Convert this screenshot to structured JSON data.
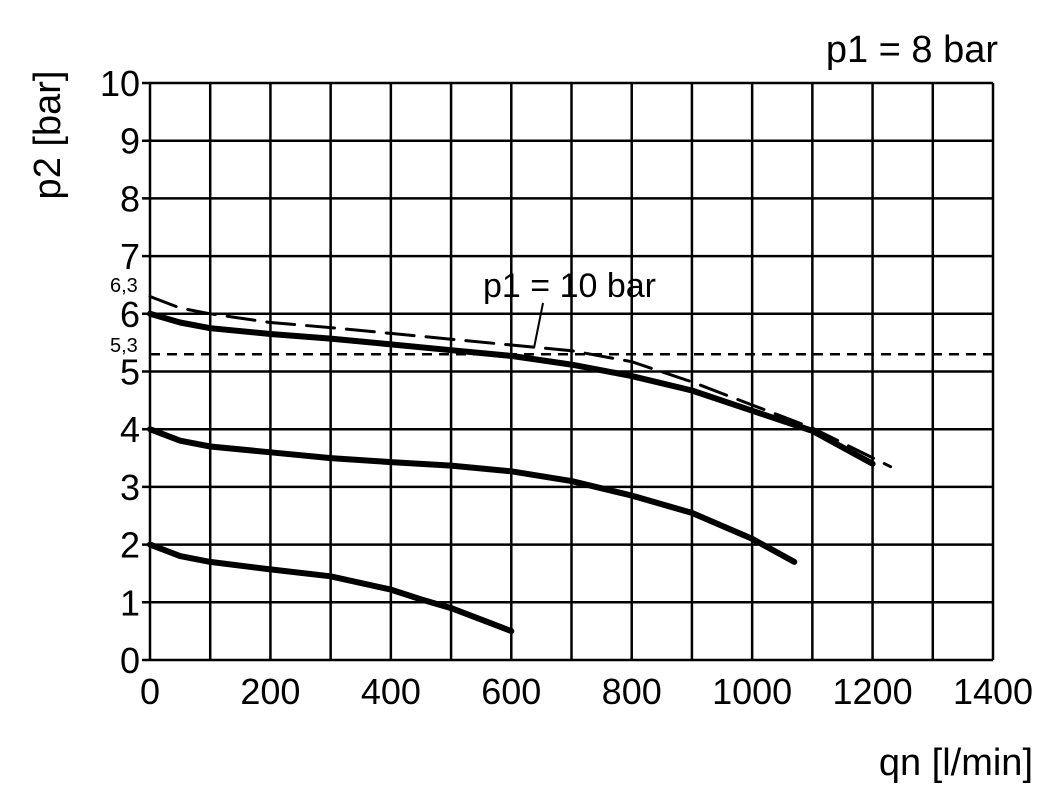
{
  "chart_data": {
    "type": "line",
    "title": "p1 = 8 bar",
    "xlabel": "qn [l/min]",
    "ylabel": "p2 [bar]",
    "xlim": [
      0,
      1400
    ],
    "ylim": [
      0,
      10
    ],
    "xticks": [
      0,
      200,
      400,
      600,
      800,
      1000,
      1200,
      1400
    ],
    "yticks": [
      0,
      1,
      2,
      3,
      4,
      5,
      6,
      7,
      8,
      9,
      10
    ],
    "grid": true,
    "colors": {
      "line": "#000000",
      "grid": "#000000"
    },
    "series": [
      {
        "style": "solid",
        "x": [
          0,
          50,
          100,
          200,
          300,
          400,
          500,
          600,
          700,
          800,
          900,
          1000,
          1100,
          1200
        ],
        "y": [
          6,
          5.85,
          5.75,
          5.65,
          5.57,
          5.47,
          5.37,
          5.27,
          5.12,
          4.92,
          4.67,
          4.32,
          3.97,
          3.4
        ]
      },
      {
        "style": "solid",
        "x": [
          0,
          50,
          100,
          200,
          300,
          400,
          500,
          600,
          700,
          800,
          900,
          1000,
          1070
        ],
        "y": [
          4,
          3.8,
          3.7,
          3.6,
          3.5,
          3.43,
          3.37,
          3.27,
          3.1,
          2.85,
          2.55,
          2.1,
          1.7
        ]
      },
      {
        "style": "solid",
        "x": [
          0,
          50,
          100,
          200,
          300,
          400,
          450,
          500,
          600
        ],
        "y": [
          2,
          1.8,
          1.7,
          1.57,
          1.45,
          1.22,
          1.05,
          0.9,
          0.5
        ]
      },
      {
        "name": "p1 = 10 bar",
        "style": "dashed",
        "x": [
          0,
          50,
          100,
          200,
          300,
          400,
          500,
          600,
          700,
          800,
          900,
          1000,
          1100,
          1230
        ],
        "y": [
          6.3,
          6.1,
          6.0,
          5.85,
          5.76,
          5.66,
          5.56,
          5.46,
          5.36,
          5.17,
          4.82,
          4.42,
          4.02,
          3.35
        ]
      }
    ],
    "reference_line": {
      "y": 5.3,
      "style": "dashed"
    },
    "annotations": {
      "start_label_high": "6,3",
      "ref_label": "5,3",
      "series_label": "p1 = 10 bar"
    }
  }
}
